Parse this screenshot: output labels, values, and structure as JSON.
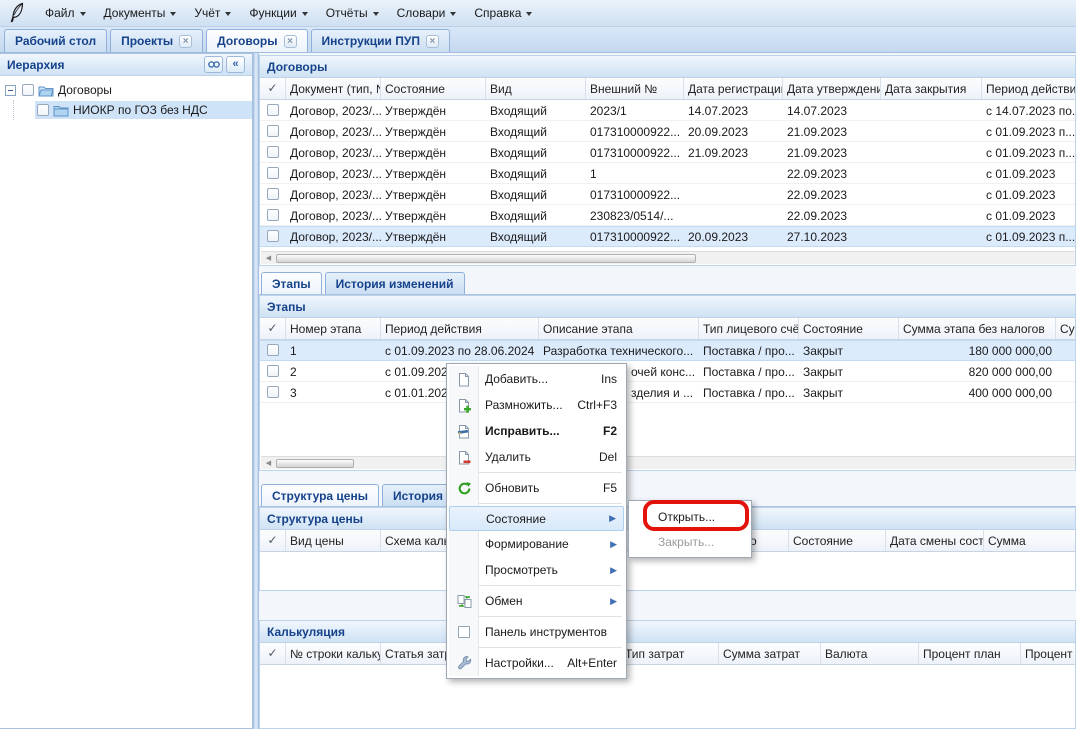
{
  "ui": {
    "check_glyph": "✓",
    "annotation_color": "#e3120b",
    "accent_text_color": "#15428b",
    "selected_row_color": "#dcebfc"
  },
  "menubar": {
    "items": [
      {
        "label": "Файл"
      },
      {
        "label": "Документы"
      },
      {
        "label": "Учёт"
      },
      {
        "label": "Функции"
      },
      {
        "label": "Отчёты"
      },
      {
        "label": "Словари"
      },
      {
        "label": "Справка"
      }
    ]
  },
  "doc_tabs": [
    {
      "label": "Рабочий стол",
      "closable": false,
      "active": false
    },
    {
      "label": "Проекты",
      "closable": true,
      "active": false
    },
    {
      "label": "Договоры",
      "closable": true,
      "active": true
    },
    {
      "label": "Инструкции ПУП",
      "closable": true,
      "active": false
    }
  ],
  "sidebar": {
    "title": "Иерархия",
    "nodes": [
      {
        "label": "Договоры",
        "selected": false
      },
      {
        "label": "НИОКР по ГОЗ без НДС",
        "selected": true
      }
    ]
  },
  "contracts": {
    "title": "Договоры",
    "columns": [
      "Документ (тип, №",
      "Состояние",
      "Вид",
      "Внешний №",
      "Дата регистрации.",
      "Дата утверждения",
      "Дата закрытия",
      "Период действия..."
    ],
    "selected": 6,
    "rows": [
      [
        "Договор, 2023/...",
        "Утверждён",
        "Входящий",
        "2023/1",
        "14.07.2023",
        "14.07.2023",
        "",
        "с 14.07.2023 по..."
      ],
      [
        "Договор, 2023/...",
        "Утверждён",
        "Входящий",
        "017310000922...",
        "20.09.2023",
        "21.09.2023",
        "",
        "с 01.09.2023 п..."
      ],
      [
        "Договор, 2023/...",
        "Утверждён",
        "Входящий",
        "017310000922...",
        "21.09.2023",
        "21.09.2023",
        "",
        "с 01.09.2023 п..."
      ],
      [
        "Договор, 2023/...",
        "Утверждён",
        "Входящий",
        "1",
        "",
        "22.09.2023",
        "",
        "с 01.09.2023"
      ],
      [
        "Договор, 2023/...",
        "Утверждён",
        "Входящий",
        "017310000922...",
        "",
        "22.09.2023",
        "",
        "с 01.09.2023"
      ],
      [
        "Договор, 2023/...",
        "Утверждён",
        "Входящий",
        "230823/0514/...",
        "",
        "22.09.2023",
        "",
        "с 01.09.2023"
      ],
      [
        "Договор, 2023/...",
        "Утверждён",
        "Входящий",
        "017310000922...",
        "20.09.2023",
        "27.10.2023",
        "",
        "с 01.09.2023 п..."
      ]
    ]
  },
  "stages": {
    "tabs": [
      {
        "label": "Этапы",
        "active": true
      },
      {
        "label": "История изменений",
        "active": false
      }
    ],
    "title": "Этапы",
    "columns": [
      "Номер этапа",
      "Период действия",
      "Описание этапа",
      "Тип лицевого счёт",
      "Состояние",
      "Сумма этапа без налогов",
      "Сумма"
    ],
    "selected": 0,
    "rows": [
      [
        "1",
        "с 01.09.2023 по 28.06.2024",
        "Разработка технического...",
        "Поставка / про...",
        "Закрыт",
        "180 000 000,00",
        ""
      ],
      [
        "2",
        "с 01.09.202",
        "очей конс...",
        "Поставка / про...",
        "Закрыт",
        "820 000 000,00",
        ""
      ],
      [
        "3",
        "с 01.01.202",
        "зделия и ...",
        "Поставка / про...",
        "Закрыт",
        "400 000 000,00",
        ""
      ]
    ]
  },
  "price": {
    "tabs": [
      {
        "label": "Структура цены",
        "active": true
      },
      {
        "label": "История из",
        "active": false
      }
    ],
    "title": "Структура цены",
    "columns": [
      "Вид цены",
      "Схема каль",
      "",
      "о",
      "Состояние",
      "Дата смены состоя",
      "Сумма"
    ],
    "selected": -1,
    "rows": []
  },
  "calc": {
    "title": "Калькуляция",
    "columns": [
      "№ строки калькул",
      "Статья затр",
      "",
      "Тип затрат",
      "Сумма затрат",
      "Валюта",
      "Процент план",
      "Процент ф"
    ],
    "selected": -1,
    "rows": []
  },
  "context_menu": {
    "items": [
      {
        "name": "add",
        "label": "Добавить...",
        "shortcut": "Ins",
        "icon": "doc-new"
      },
      {
        "name": "duplicate",
        "label": "Размножить...",
        "shortcut": "Ctrl+F3",
        "icon": "doc-plus"
      },
      {
        "name": "edit",
        "label": "Исправить...",
        "shortcut": "F2",
        "icon": "doc-edit",
        "bold": true
      },
      {
        "name": "delete",
        "label": "Удалить",
        "shortcut": "Del",
        "icon": "doc-minus",
        "sep_after": true
      },
      {
        "name": "refresh",
        "label": "Обновить",
        "shortcut": "F5",
        "icon": "refresh",
        "sep_after": true
      },
      {
        "name": "state",
        "label": "Состояние",
        "submenu": true,
        "highlighted": true
      },
      {
        "name": "formation",
        "label": "Формирование",
        "submenu": true
      },
      {
        "name": "view",
        "label": "Просмотреть",
        "submenu": true,
        "sep_after": true
      },
      {
        "name": "exchange",
        "label": "Обмен",
        "submenu": true,
        "icon": "exchange",
        "sep_after": true
      },
      {
        "name": "toolbar",
        "label": "Панель инструментов",
        "icon": "checkbox",
        "sep_after": true
      },
      {
        "name": "settings",
        "label": "Настройки...",
        "shortcut": "Alt+Enter",
        "icon": "wrench"
      }
    ]
  },
  "state_submenu": {
    "items": [
      {
        "name": "open",
        "label": "Открыть...",
        "annotated": true,
        "disabled": false
      },
      {
        "name": "close",
        "label": "Закрыть...",
        "annotated": false,
        "disabled": true
      }
    ]
  }
}
